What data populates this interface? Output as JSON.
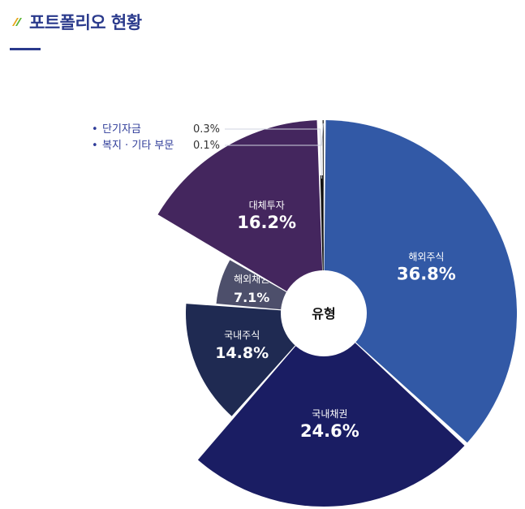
{
  "header": {
    "title": "포트폴리오 현황",
    "logo_colors": [
      "#e8a418",
      "#5ab534"
    ]
  },
  "chart_data": {
    "type": "pie",
    "center_label": "유형",
    "slices": [
      {
        "name": "해외주식",
        "value": 36.8,
        "label": "36.8%",
        "color": "#3259a6",
        "size": "large"
      },
      {
        "name": "국내채권",
        "value": 24.6,
        "label": "24.6%",
        "color": "#1a1d63",
        "size": "large"
      },
      {
        "name": "국내주식",
        "value": 14.8,
        "label": "14.8%",
        "color": "#1f2a52",
        "size": "medium"
      },
      {
        "name": "해외채권",
        "value": 7.1,
        "label": "7.1%",
        "color": "#4d4f6b",
        "size": "small"
      },
      {
        "name": "대체투자",
        "value": 16.2,
        "label": "16.2%",
        "color": "#44265e",
        "size": "large"
      },
      {
        "name": "단기자금",
        "value": 0.3,
        "label": "0.3%",
        "color": "#111111",
        "size": "medium"
      },
      {
        "name": "복지 · 기타 부문",
        "value": 0.1,
        "label": "0.1%",
        "color": "#3c3c3c",
        "size": "large"
      }
    ],
    "small_slice_labels": [
      {
        "name": "단기자금",
        "value": "0.3%"
      },
      {
        "name": "복지 · 기타 부문",
        "value": "0.1%"
      }
    ]
  }
}
